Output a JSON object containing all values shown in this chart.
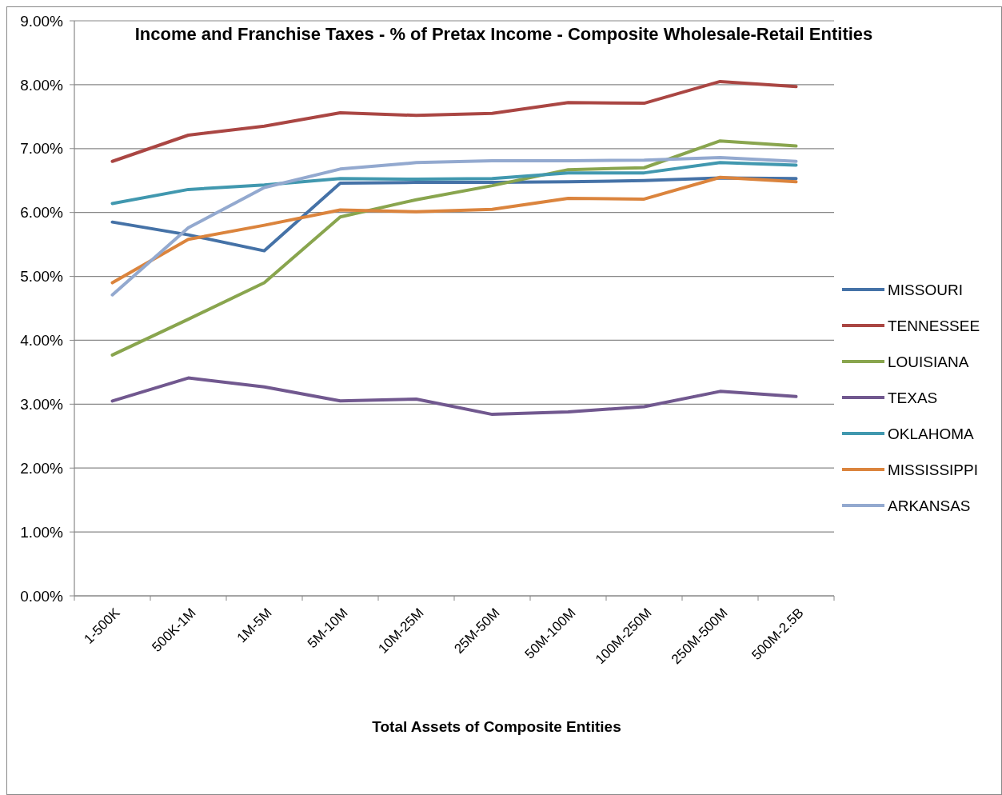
{
  "chart_data": {
    "type": "line",
    "title": "Income and Franchise Taxes - % of Pretax Income - Composite Wholesale-Retail Entities",
    "xlabel": "Total Assets of Composite Entities",
    "categories": [
      "1-500K",
      "500K-1M",
      "1M-5M",
      "5M-10M",
      "10M-25M",
      "25M-50M",
      "50M-100M",
      "100M-250M",
      "250M-500M",
      "500M-2.5B"
    ],
    "series": [
      {
        "name": "MISSOURI",
        "color": "#4572a7",
        "values": [
          5.85,
          5.65,
          5.4,
          6.46,
          6.47,
          6.47,
          6.48,
          6.5,
          6.54,
          6.53
        ]
      },
      {
        "name": "TENNESSEE",
        "color": "#aa4643",
        "values": [
          6.8,
          7.21,
          7.35,
          7.56,
          7.52,
          7.55,
          7.72,
          7.71,
          8.05,
          7.97
        ]
      },
      {
        "name": "LOUISIANA",
        "color": "#89a54e",
        "values": [
          3.77,
          4.33,
          4.9,
          5.93,
          6.2,
          6.42,
          6.67,
          6.7,
          7.12,
          7.04
        ]
      },
      {
        "name": "TEXAS",
        "color": "#71588f",
        "values": [
          3.05,
          3.41,
          3.27,
          3.05,
          3.08,
          2.84,
          2.88,
          2.96,
          3.2,
          3.12
        ]
      },
      {
        "name": "OKLAHOMA",
        "color": "#4198af",
        "values": [
          6.14,
          6.36,
          6.43,
          6.53,
          6.52,
          6.53,
          6.62,
          6.62,
          6.78,
          6.74
        ]
      },
      {
        "name": "MISSISSIPPI",
        "color": "#db843d",
        "values": [
          4.9,
          5.58,
          5.8,
          6.04,
          6.01,
          6.05,
          6.22,
          6.21,
          6.55,
          6.48
        ]
      },
      {
        "name": "ARKANSAS",
        "color": "#93a9cf",
        "values": [
          4.71,
          5.76,
          6.39,
          6.68,
          6.78,
          6.81,
          6.81,
          6.82,
          6.86,
          6.8
        ]
      }
    ],
    "ylim": [
      0,
      9
    ],
    "yticks": [
      {
        "value": 0,
        "label": "0.00%"
      },
      {
        "value": 1,
        "label": "1.00%"
      },
      {
        "value": 2,
        "label": "2.00%"
      },
      {
        "value": 3,
        "label": "3.00%"
      },
      {
        "value": 4,
        "label": "4.00%"
      },
      {
        "value": 5,
        "label": "5.00%"
      },
      {
        "value": 6,
        "label": "6.00%"
      },
      {
        "value": 7,
        "label": "7.00%"
      },
      {
        "value": 8,
        "label": "8.00%"
      },
      {
        "value": 9,
        "label": "9.00%"
      }
    ],
    "grid": "y",
    "legend": "right",
    "marker": "none",
    "line_style": "solid"
  }
}
